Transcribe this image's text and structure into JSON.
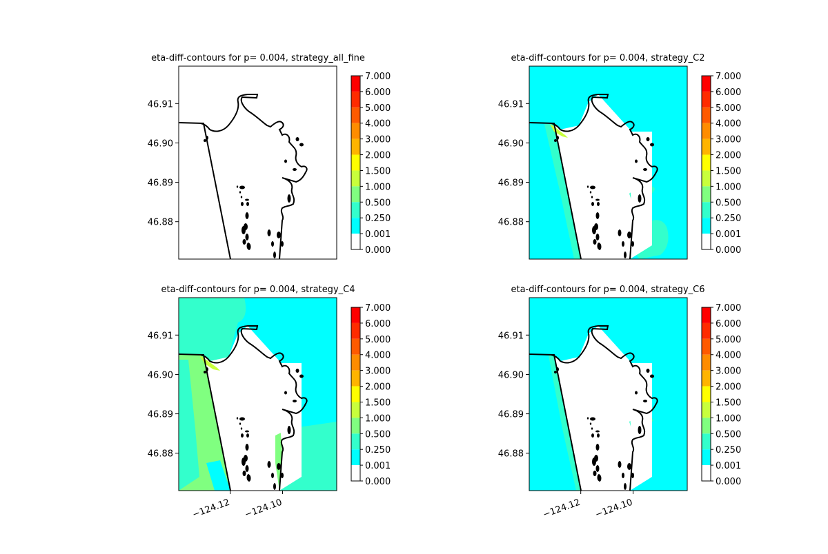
{
  "figure": {
    "colorbar_levels": [
      "7.000",
      "6.000",
      "5.000",
      "4.000",
      "3.000",
      "2.000",
      "1.500",
      "1.000",
      "0.500",
      "0.250",
      "0.001",
      "0.000"
    ],
    "colorbar_colors": [
      "#ff0000",
      "#ff2b00",
      "#ff5a00",
      "#ff8c00",
      "#ffb400",
      "#ffff00",
      "#c8ff3c",
      "#80ff80",
      "#33ffcc",
      "#00ffff",
      "#ffffff"
    ],
    "ylim": [
      46.8705,
      46.9195
    ],
    "xlim": [
      -124.1397,
      -124.0793
    ],
    "y_ticks": [
      "46.91",
      "46.90",
      "46.89",
      "46.88"
    ],
    "x_ticks": [
      "−124.12",
      "−124.10"
    ],
    "coastline_color": "#000000"
  },
  "chart_data": [
    {
      "type": "heatmap",
      "title": "eta-diff-contours for p= 0.004, strategy_all_fine",
      "fill": "none",
      "y_ticks": [
        46.91,
        46.9,
        46.89,
        46.88
      ],
      "x_ticks": []
    },
    {
      "type": "heatmap",
      "title": "eta-diff-contours for p= 0.004, strategy_C2",
      "fill": "mostly 0.001-0.250 with 0.250-0.500 patches",
      "y_ticks": [
        46.91,
        46.9,
        46.89,
        46.88
      ],
      "x_ticks": []
    },
    {
      "type": "heatmap",
      "title": "eta-diff-contours for p= 0.004, strategy_C4",
      "fill": "0.250-1.000 west of spit, 0.001-0.500 in bay",
      "y_ticks": [
        46.91,
        46.9,
        46.89,
        46.88
      ],
      "x_ticks": [
        -124.12,
        -124.1
      ]
    },
    {
      "type": "heatmap",
      "title": "eta-diff-contours for p= 0.004, strategy_C6",
      "fill": "mostly 0.001-0.250",
      "y_ticks": [
        46.91,
        46.9,
        46.89,
        46.88
      ],
      "x_ticks": [
        -124.12,
        -124.1
      ]
    }
  ]
}
